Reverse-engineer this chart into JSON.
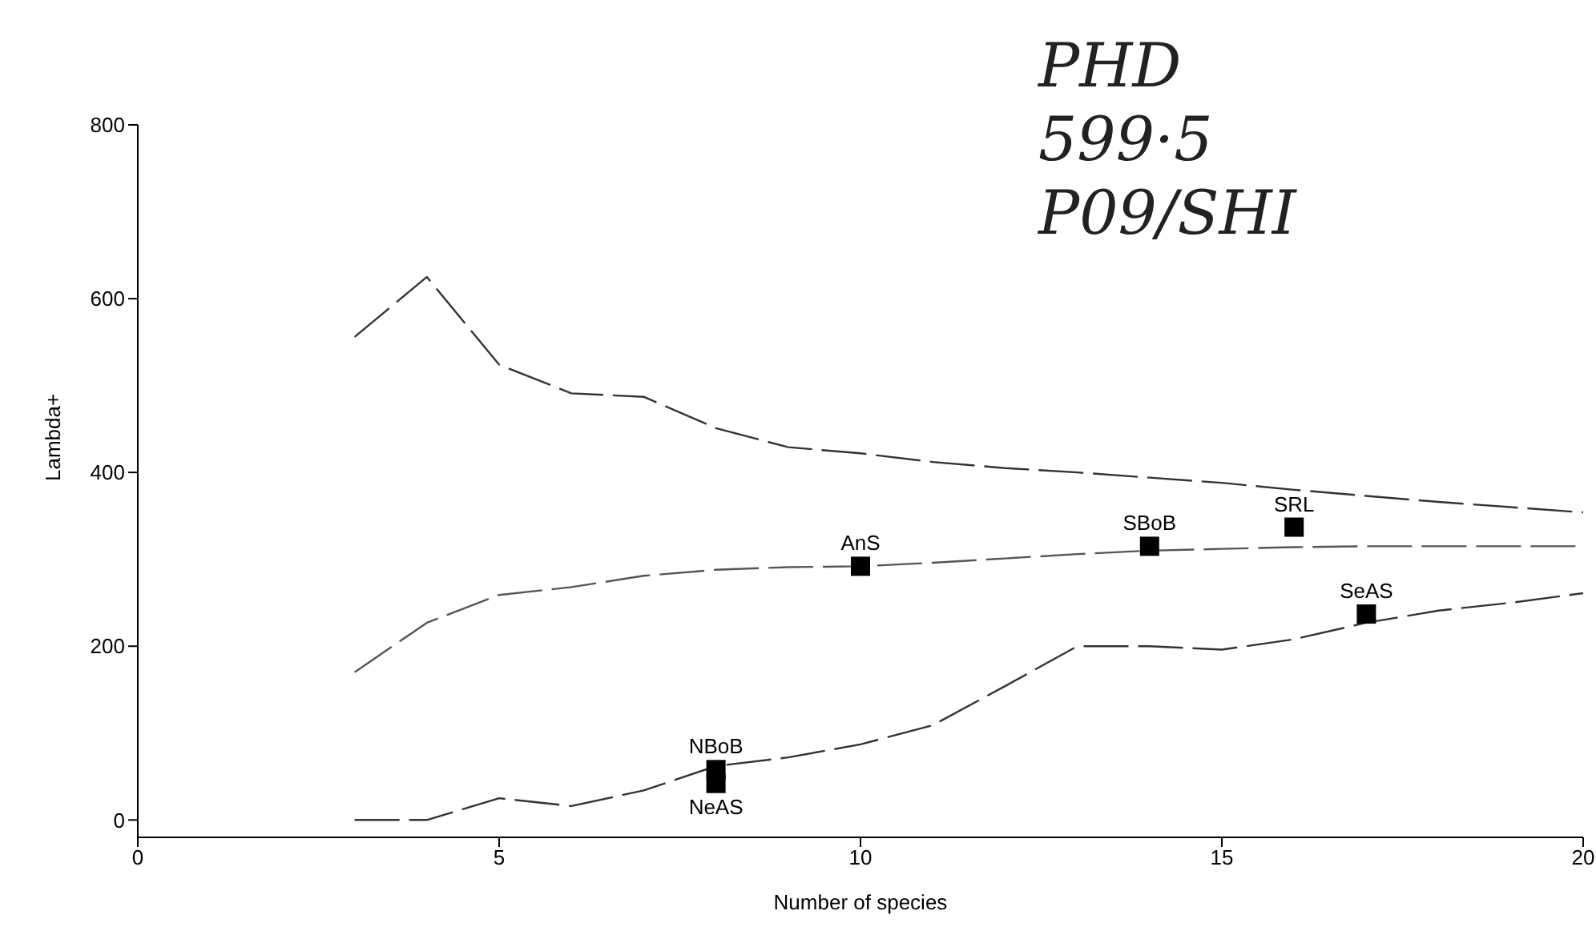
{
  "chart_data": {
    "type": "line",
    "xlabel": "Number of species",
    "ylabel": "Lambda+",
    "xlim": [
      0,
      20
    ],
    "xticks": [
      0,
      5,
      10,
      15,
      20
    ],
    "ylim": [
      -20,
      800
    ],
    "yticks": [
      0,
      200,
      400,
      600,
      800
    ],
    "series": [
      {
        "color": "#333333",
        "line_style": "dashed",
        "marker": "none",
        "x": [
          3,
          4,
          5,
          6,
          7,
          8,
          9,
          10,
          11,
          12,
          13,
          14,
          15,
          16,
          17,
          18,
          19,
          20
        ],
        "values": [
          556,
          625,
          524,
          491,
          487,
          451,
          429,
          422,
          412,
          405,
          400,
          394,
          388,
          380,
          373,
          366,
          360,
          354
        ]
      },
      {
        "color": "#555555",
        "line_style": "dashed",
        "marker": "none",
        "x": [
          3,
          4,
          5,
          6,
          7,
          8,
          9,
          10,
          11,
          12,
          13,
          14,
          15,
          16,
          17,
          18,
          19,
          20
        ],
        "values": [
          170,
          227,
          259,
          268,
          281,
          288,
          291,
          292,
          296,
          301,
          306,
          310,
          312,
          314,
          315,
          315,
          315,
          315
        ]
      },
      {
        "color": "#333333",
        "line_style": "dashed",
        "marker": "none",
        "x": [
          3,
          4,
          5,
          6,
          7,
          8,
          9,
          10,
          11,
          12,
          13,
          14,
          15,
          16,
          17,
          18,
          19,
          20
        ],
        "values": [
          0,
          0,
          25,
          16,
          34,
          62,
          72,
          87,
          109,
          154,
          200,
          200,
          196,
          208,
          227,
          241,
          250,
          261
        ]
      },
      {
        "type": "scatter",
        "color": "#000000",
        "marker": "square",
        "x": [
          10,
          14,
          16,
          17,
          8,
          8
        ],
        "values": [
          292,
          315,
          337,
          237,
          58,
          42
        ]
      }
    ],
    "annotations": [
      {
        "text": "AnS",
        "x": 10,
        "y": 292
      },
      {
        "text": "SBoB",
        "x": 14,
        "y": 315
      },
      {
        "text": "SRL",
        "x": 16,
        "y": 337
      },
      {
        "text": "SeAS",
        "x": 17,
        "y": 237
      },
      {
        "text": "NBoB",
        "x": 8,
        "y": 58
      },
      {
        "text": "NeAS",
        "x": 8,
        "y": 42
      },
      "PHD",
      "599·5",
      "P09/SHI"
    ]
  }
}
